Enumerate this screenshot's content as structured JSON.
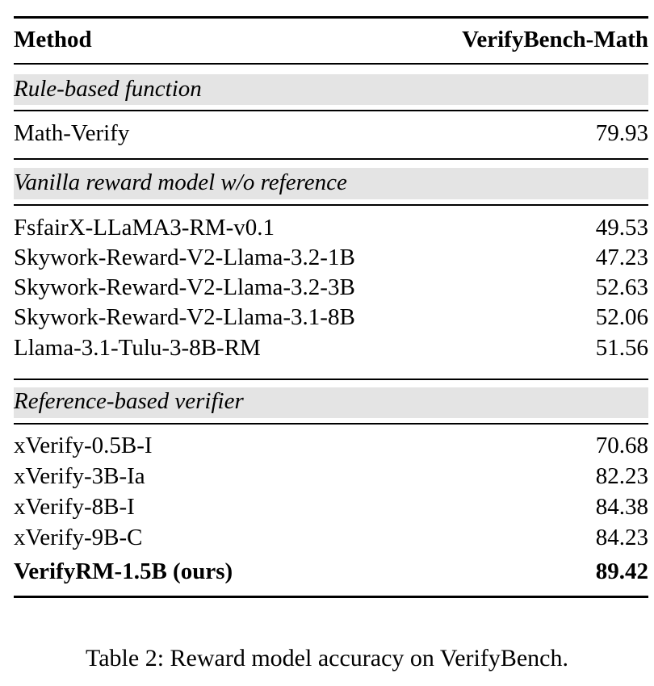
{
  "table": {
    "header": {
      "method": "Method",
      "score": "VerifyBench-Math"
    },
    "sections": [
      {
        "title": "Rule-based function",
        "rows": [
          {
            "method": "Math-Verify",
            "score": "79.93"
          }
        ]
      },
      {
        "title": "Vanilla reward model w/o reference",
        "rows": [
          {
            "method": "FsfairX-LLaMA3-RM-v0.1",
            "score": "49.53"
          },
          {
            "method": "Skywork-Reward-V2-Llama-3.2-1B",
            "score": "47.23"
          },
          {
            "method": "Skywork-Reward-V2-Llama-3.2-3B",
            "score": "52.63"
          },
          {
            "method": "Skywork-Reward-V2-Llama-3.1-8B",
            "score": "52.06"
          },
          {
            "method": "Llama-3.1-Tulu-3-8B-RM",
            "score": "51.56"
          }
        ]
      },
      {
        "title": "Reference-based verifier",
        "rows": [
          {
            "method": "xVerify-0.5B-I",
            "score": "70.68"
          },
          {
            "method": "xVerify-3B-Ia",
            "score": "82.23"
          },
          {
            "method": "xVerify-8B-I",
            "score": "84.38"
          },
          {
            "method": "xVerify-9B-C",
            "score": "84.23"
          },
          {
            "method": "VerifyRM-1.5B (ours)",
            "score": "89.42"
          }
        ]
      }
    ]
  },
  "caption": "Table 2: Reward model accuracy on VerifyBench."
}
